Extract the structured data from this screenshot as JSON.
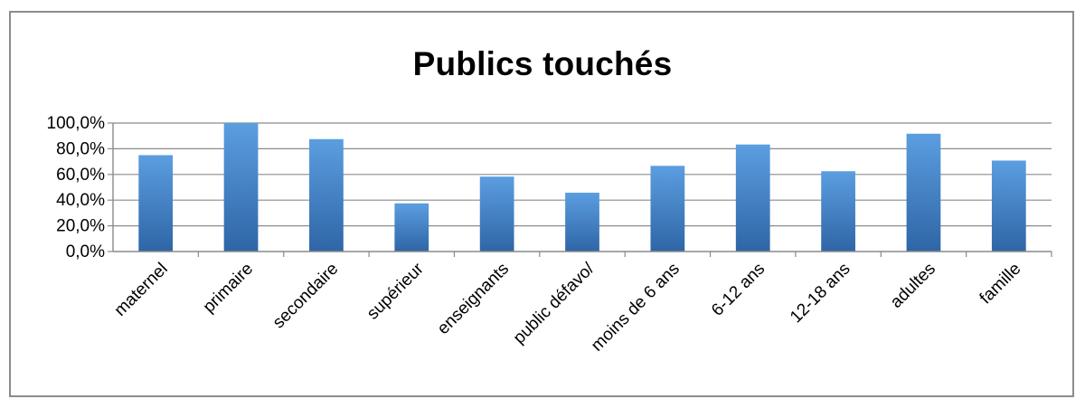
{
  "colors": {
    "bar_main": "#4a8ad0",
    "bar_dark": "#2f65a6",
    "bar_light": "#5b9ee0",
    "gridline": "#8a8a8a",
    "frame": "#8c8c8c"
  },
  "chart_data": {
    "type": "bar",
    "title": "Publics touchés",
    "xlabel": "",
    "ylabel": "",
    "ylim": [
      0,
      100
    ],
    "y_ticks": [
      0,
      20,
      40,
      60,
      80,
      100
    ],
    "y_tick_labels": [
      "0,0%",
      "20,0%",
      "40,0%",
      "60,0%",
      "80,0%",
      "100,0%"
    ],
    "grid": true,
    "legend": "none",
    "categories": [
      "maternel",
      "primaire",
      "secondaire",
      "supérieur",
      "enseignants",
      "public défavo/",
      "moins de 6 ans",
      "6-12 ans",
      "12-18 ans",
      "adultes",
      "famille"
    ],
    "values": [
      75,
      100,
      87.5,
      37.5,
      58.3,
      45.8,
      66.7,
      83.3,
      62.5,
      91.7,
      70.8
    ]
  }
}
